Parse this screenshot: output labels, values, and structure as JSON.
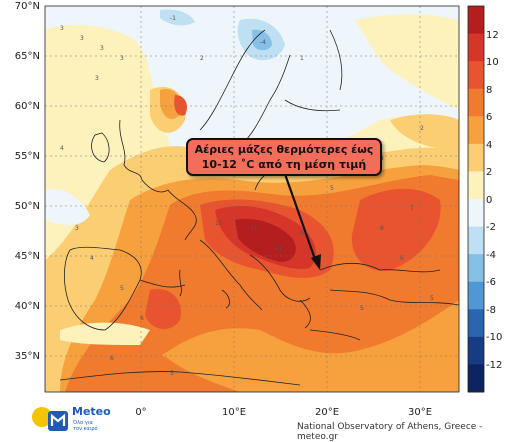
{
  "map": {
    "lat_ticks": [
      "70°N",
      "65°N",
      "60°N",
      "55°N",
      "50°N",
      "45°N",
      "40°N",
      "35°N"
    ],
    "lon_ticks": [
      "0°",
      "10°E",
      "20°E",
      "30°E"
    ],
    "colorbar_ticks": [
      "12",
      "10",
      "8",
      "6",
      "4",
      "2",
      "0",
      "-2",
      "-4",
      "-6",
      "-8",
      "-10",
      "-12"
    ],
    "colorbar_colors": [
      "#b41e1e",
      "#d6362a",
      "#e8542f",
      "#f07a2e",
      "#f6a13e",
      "#fbce73",
      "#fdf1bc",
      "#eef6fb",
      "#bfe0f2",
      "#86c0e6",
      "#4f98d2",
      "#2a66b0",
      "#173c84",
      "#0d2460"
    ]
  },
  "callout": {
    "line1": "Αέριες μάζες θερμότερες έως",
    "line2": "10-12 ˚C από τη μέση τιμή"
  },
  "logo": {
    "name": "Meteo",
    "tagline": "Όλα για τον καιρό",
    "icon": "sun-cloud-logo-icon"
  },
  "credit": "National Observatory of Athens, Greece - meteo.gr"
}
